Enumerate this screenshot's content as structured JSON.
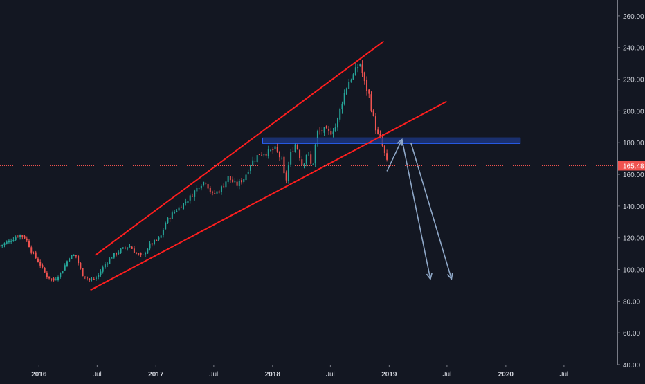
{
  "theme": {
    "background": "#131722",
    "axis_line": "#787b86",
    "tick_text": "#d1d4dc",
    "up_color": "#26a69a",
    "down_color": "#ef5350",
    "trend_color": "#ff1e1e",
    "zone_fill": "#1e3a8a",
    "zone_stroke": "#2962ff",
    "arrow_color": "#8fa8c8",
    "price_line_color": "#ef5350"
  },
  "chart_data": {
    "type": "candlestick",
    "title": "",
    "xlabel": "",
    "ylabel": "",
    "ylim": [
      40,
      270
    ],
    "xlim": [
      "2015-09-01",
      "2020-12-15"
    ],
    "grid": false,
    "y_ticks": [
      "40.00",
      "60.00",
      "80.00",
      "100.00",
      "120.00",
      "140.00",
      "160.00",
      "180.00",
      "200.00",
      "220.00",
      "240.00",
      "260.00"
    ],
    "x_ticks": [
      {
        "label": "2016",
        "date": "2016-01-01"
      },
      {
        "label": "Jul",
        "date": "2016-07-01"
      },
      {
        "label": "2017",
        "date": "2017-01-01"
      },
      {
        "label": "Jul",
        "date": "2017-07-01"
      },
      {
        "label": "2018",
        "date": "2018-01-01"
      },
      {
        "label": "Jul",
        "date": "2018-07-01"
      },
      {
        "label": "2019",
        "date": "2019-01-01"
      },
      {
        "label": "Jul",
        "date": "2019-07-01"
      },
      {
        "label": "2020",
        "date": "2020-01-01"
      },
      {
        "label": "Jul",
        "date": "2020-07-01"
      }
    ],
    "last_price": {
      "value": 165.48,
      "label": "165.48"
    },
    "price_path": [
      [
        "2015-09-01",
        115
      ],
      [
        "2015-10-01",
        118
      ],
      [
        "2015-11-01",
        122
      ],
      [
        "2015-11-20",
        120
      ],
      [
        "2015-12-10",
        111
      ],
      [
        "2016-01-05",
        103
      ],
      [
        "2016-01-25",
        96
      ],
      [
        "2016-02-15",
        93
      ],
      [
        "2016-03-10",
        98
      ],
      [
        "2016-04-05",
        108
      ],
      [
        "2016-04-25",
        109
      ],
      [
        "2016-05-15",
        97
      ],
      [
        "2016-06-10",
        93
      ],
      [
        "2016-06-30",
        95
      ],
      [
        "2016-07-25",
        103
      ],
      [
        "2016-08-15",
        108
      ],
      [
        "2016-09-10",
        112
      ],
      [
        "2016-10-10",
        115
      ],
      [
        "2016-11-01",
        110
      ],
      [
        "2016-11-20",
        108
      ],
      [
        "2016-12-10",
        115
      ],
      [
        "2017-01-15",
        120
      ],
      [
        "2017-02-01",
        130
      ],
      [
        "2017-02-25",
        136
      ],
      [
        "2017-03-20",
        140
      ],
      [
        "2017-04-20",
        146
      ],
      [
        "2017-05-15",
        153
      ],
      [
        "2017-06-05",
        156
      ],
      [
        "2017-06-25",
        147
      ],
      [
        "2017-07-20",
        150
      ],
      [
        "2017-08-15",
        158
      ],
      [
        "2017-09-10",
        153
      ],
      [
        "2017-10-05",
        158
      ],
      [
        "2017-10-25",
        167
      ],
      [
        "2017-11-20",
        173
      ],
      [
        "2017-12-20",
        174
      ],
      [
        "2018-01-10",
        176
      ],
      [
        "2018-02-01",
        168
      ],
      [
        "2018-02-10",
        153
      ],
      [
        "2018-02-25",
        172
      ],
      [
        "2018-03-15",
        180
      ],
      [
        "2018-04-05",
        165
      ],
      [
        "2018-04-20",
        175
      ],
      [
        "2018-05-05",
        163
      ],
      [
        "2018-05-20",
        186
      ],
      [
        "2018-06-10",
        188
      ],
      [
        "2018-06-30",
        186
      ],
      [
        "2018-07-20",
        191
      ],
      [
        "2018-08-05",
        205
      ],
      [
        "2018-08-25",
        218
      ],
      [
        "2018-09-10",
        222
      ],
      [
        "2018-09-25",
        228
      ],
      [
        "2018-10-03",
        230
      ],
      [
        "2018-10-15",
        218
      ],
      [
        "2018-10-30",
        210
      ],
      [
        "2018-11-10",
        198
      ],
      [
        "2018-11-25",
        185
      ],
      [
        "2018-12-05",
        182
      ],
      [
        "2018-12-15",
        175
      ],
      [
        "2018-12-28",
        165.48
      ]
    ],
    "drawings": {
      "upper_trendline": [
        [
          "2016-06-25",
          109
        ],
        [
          "2018-12-15",
          244
        ]
      ],
      "lower_trendline": [
        [
          "2016-06-10",
          87
        ],
        [
          "2019-06-30",
          206
        ]
      ],
      "resistance_zone": {
        "x1": "2017-12-01",
        "x2": "2020-02-15",
        "y1": 179.5,
        "y2": 183
      },
      "arrows": [
        {
          "points": [
            [
              "2018-12-25",
              162
            ],
            [
              "2019-02-10",
              182
            ]
          ]
        },
        {
          "points": [
            [
              "2019-02-10",
              182
            ],
            [
              "2019-05-10",
              94
            ]
          ]
        },
        {
          "points": [
            [
              "2019-03-10",
              180
            ],
            [
              "2019-07-15",
              94
            ]
          ]
        }
      ]
    }
  }
}
